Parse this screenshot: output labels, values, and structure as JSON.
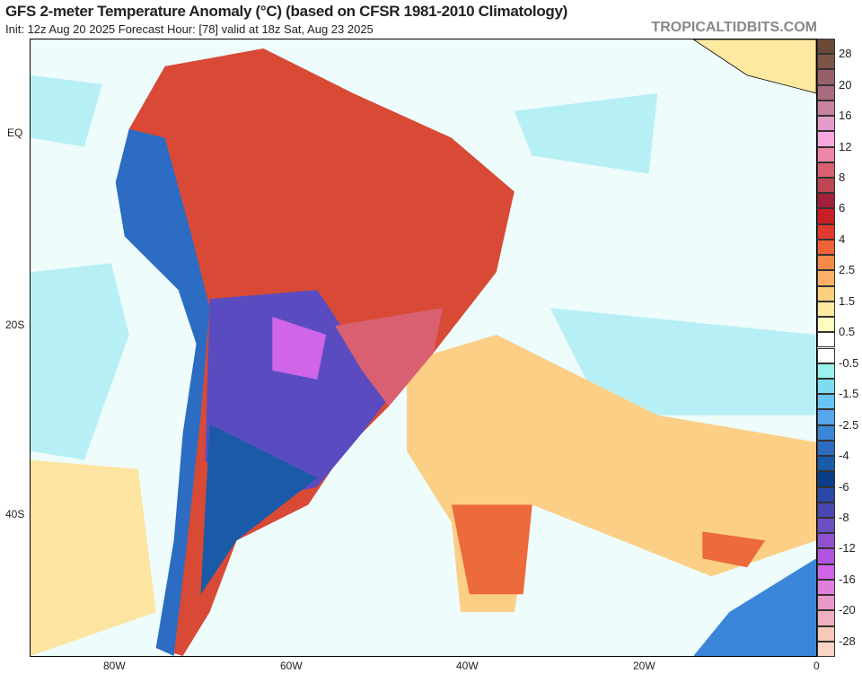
{
  "title": "GFS 2-meter Temperature Anomaly (°C) (based on CFSR 1981-2010 Climatology)",
  "subtitle": "Init: 12z Aug 20 2025   Forecast Hour: [78]   valid at 18z Sat, Aug 23 2025",
  "watermark": "TROPICALTIDBITS.COM",
  "lat_labels": [
    "EQ",
    "20S",
    "40S"
  ],
  "lon_labels": [
    "80W",
    "60W",
    "40W",
    "20W",
    "0"
  ],
  "colorbar": {
    "labels": [
      "28",
      "20",
      "16",
      "12",
      "8",
      "6",
      "4",
      "2.5",
      "1.5",
      "0.5",
      "-0.5",
      "-1.5",
      "-2.5",
      "-4",
      "-6",
      "-8",
      "-12",
      "-16",
      "-20",
      "-28"
    ],
    "colors": [
      "#6b4a35",
      "#7d5548",
      "#96606a",
      "#a86c7e",
      "#c782a0",
      "#e59bc9",
      "#f7a6e0",
      "#ef86a8",
      "#d96070",
      "#bf4555",
      "#a3203a",
      "#c81f27",
      "#e03a2f",
      "#ee6235",
      "#f58a48",
      "#fbb066",
      "#fdd080",
      "#fde9a0",
      "#fefdc0",
      "#ffffff",
      "#ffffff",
      "#99f2ec",
      "#7edbf0",
      "#68c4f2",
      "#56a6ec",
      "#3c86da",
      "#2c6cc2",
      "#1a5aa8",
      "#0a3e8a",
      "#2a48a8",
      "#4848b0",
      "#6a50c0",
      "#9050d0",
      "#b055e0",
      "#d065e8",
      "#e080dc",
      "#e898c8",
      "#f0b0c0",
      "#f8c8b8",
      "#fad4c4"
    ]
  }
}
